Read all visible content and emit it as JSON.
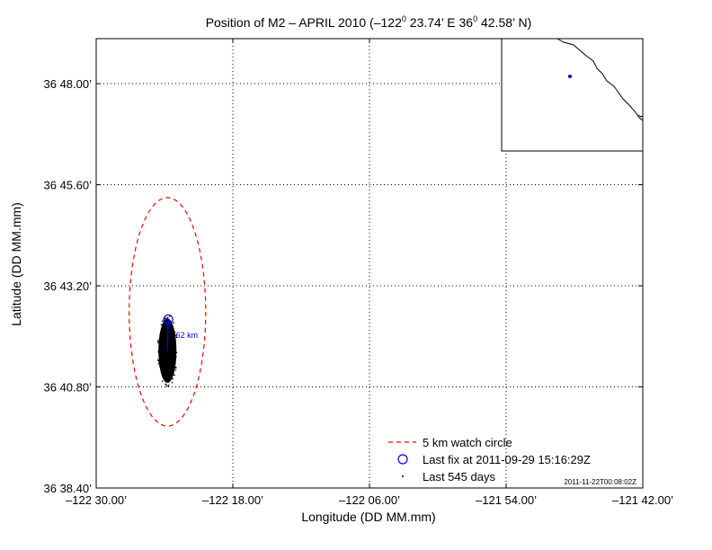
{
  "chart_data": {
    "type": "scatter",
    "title": "Position of M2 – APRIL 2010 (–122",
    "title_sup1": "0",
    "title_mid": " 23.74’ E  36",
    "title_sup2": "0",
    "title_end": " 42.58’ N)",
    "xlabel": "Longitude (DD MM.mm)",
    "ylabel": "Latitude (DD MM.mm)",
    "xlim": [
      -122.5,
      -121.7
    ],
    "ylim": [
      36.64,
      36.8178
    ],
    "x_ticks": [
      -122.5,
      -122.3,
      -122.1,
      -121.9,
      -121.7
    ],
    "x_tick_labels": [
      "–122 30.00’",
      "–122 18.00’",
      "–122 06.00’",
      "–121 54.00’",
      "–121 42.00’"
    ],
    "y_ticks": [
      36.64,
      36.68,
      36.72,
      36.76,
      36.8
    ],
    "y_tick_labels": [
      "36 38.40’",
      "36 40.80’",
      "36 43.20’",
      "36 45.60’",
      "36 48.00’"
    ],
    "grid": true,
    "watch_circle": {
      "center": [
        -122.3957,
        36.7097
      ],
      "radius_x": 0.056,
      "radius_y": 0.0452,
      "color": "#ff0000"
    },
    "drift_cloud": {
      "center": [
        -122.3957,
        36.6943
      ],
      "radius_x": 0.0125,
      "radius_y": 0.0125,
      "color": "#000000"
    },
    "last_fix": {
      "point": [
        -122.3945,
        36.7067
      ],
      "color": "#0000ff"
    },
    "distance_label": ".62 km",
    "legend_position": "bottom-right",
    "legend": [
      {
        "label": "5 km watch circle",
        "color": "#ff0000"
      },
      {
        "label": "Last fix at 2011-09-29 15:16:29Z",
        "color": "#0000ff"
      },
      {
        "label": "Last 545 days",
        "color": "#000000"
      }
    ],
    "timestamp": "2011-11-22T00:08:02Z"
  },
  "inset_map": {
    "marker_color": "#0000ff",
    "coast_color": "#000000"
  }
}
